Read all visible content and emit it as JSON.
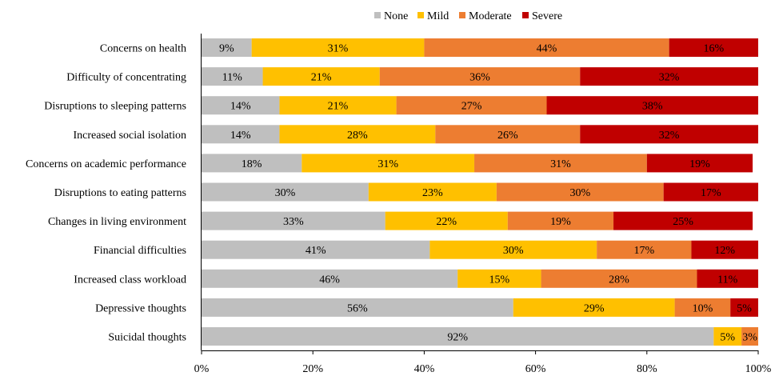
{
  "chart_data": {
    "type": "bar",
    "orientation": "horizontal",
    "stacked": true,
    "percent": true,
    "title": "",
    "xlabel": "",
    "ylabel": "",
    "xlim": [
      0,
      100
    ],
    "x_ticks": [
      "0%",
      "20%",
      "40%",
      "60%",
      "80%",
      "100%"
    ],
    "grid": false,
    "legend_position": "top-center",
    "categories": [
      "Concerns on health",
      "Difficulty of concentrating",
      "Disruptions to sleeping patterns",
      "Increased social isolation",
      "Concerns on academic performance",
      "Disruptions to eating patterns",
      "Changes in living environment",
      "Financial difficulties",
      "Increased class workload",
      "Depressive thoughts",
      "Suicidal thoughts"
    ],
    "series": [
      {
        "name": "None",
        "color": "#bfbfbf",
        "values": [
          9,
          11,
          14,
          14,
          18,
          30,
          33,
          41,
          46,
          56,
          92
        ]
      },
      {
        "name": "Mild",
        "color": "#ffc000",
        "values": [
          31,
          21,
          21,
          28,
          31,
          23,
          22,
          30,
          15,
          29,
          5
        ]
      },
      {
        "name": "Moderate",
        "color": "#ed7d31",
        "values": [
          44,
          36,
          27,
          26,
          31,
          30,
          19,
          17,
          28,
          10,
          3
        ]
      },
      {
        "name": "Severe",
        "color": "#c00000",
        "values": [
          16,
          32,
          38,
          32,
          19,
          17,
          25,
          12,
          11,
          5,
          0
        ]
      }
    ]
  }
}
